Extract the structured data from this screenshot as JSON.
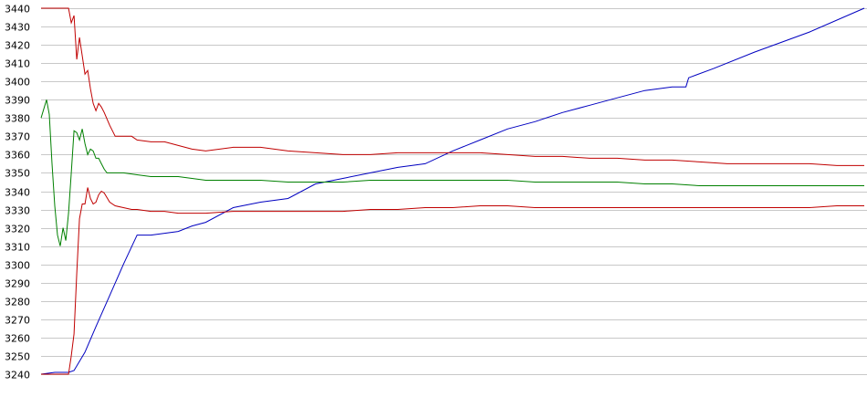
{
  "chart_data": {
    "type": "line",
    "title": "",
    "xlabel": "",
    "ylabel": "",
    "ylim": [
      3240,
      3440
    ],
    "yticks": [
      3440,
      3430,
      3420,
      3410,
      3400,
      3390,
      3380,
      3370,
      3360,
      3350,
      3340,
      3330,
      3320,
      3310,
      3300,
      3290,
      3280,
      3270,
      3260,
      3250,
      3240
    ],
    "xlim": [
      0,
      300
    ],
    "grid": true,
    "legend": "none",
    "series": [
      {
        "color": "#0000c0",
        "x": [
          0,
          5,
          10,
          12,
          16,
          20,
          25,
          30,
          35,
          40,
          45,
          50,
          55,
          60,
          70,
          80,
          90,
          100,
          110,
          120,
          130,
          140,
          150,
          160,
          170,
          180,
          190,
          200,
          210,
          220,
          230,
          235,
          236,
          245,
          260,
          280,
          300
        ],
        "y": [
          3240,
          3241,
          3241,
          3242,
          3252,
          3266,
          3283,
          3300,
          3316,
          3316,
          3317,
          3318,
          3321,
          3323,
          3331,
          3334,
          3336,
          3344,
          3347,
          3350,
          3353,
          3355,
          3362,
          3368,
          3374,
          3378,
          3383,
          3387,
          3391,
          3395,
          3397,
          3397,
          3402,
          3407,
          3416,
          3427,
          3440
        ]
      },
      {
        "color": "#c00000",
        "x": [
          0,
          5,
          8,
          10,
          11,
          12,
          13,
          14,
          15,
          16,
          17,
          18,
          19,
          20,
          21,
          22,
          23,
          25,
          27,
          30,
          33,
          35,
          40,
          45,
          50,
          55,
          60,
          70,
          80,
          90,
          100,
          110,
          120,
          130,
          140,
          150,
          160,
          170,
          180,
          190,
          200,
          210,
          220,
          230,
          240,
          250,
          260,
          270,
          280,
          290,
          300
        ],
        "y": [
          3440,
          3440,
          3440,
          3440,
          3432,
          3436,
          3412,
          3424,
          3414,
          3404,
          3406,
          3396,
          3388,
          3384,
          3388,
          3386,
          3383,
          3376,
          3370,
          3370,
          3370,
          3368,
          3367,
          3367,
          3365,
          3363,
          3362,
          3364,
          3364,
          3362,
          3361,
          3360,
          3360,
          3361,
          3361,
          3361,
          3361,
          3360,
          3359,
          3359,
          3358,
          3358,
          3357,
          3357,
          3356,
          3355,
          3355,
          3355,
          3355,
          3354,
          3354
        ]
      },
      {
        "color": "#008000",
        "x": [
          0,
          2,
          3,
          4,
          5,
          6,
          7,
          8,
          9,
          10,
          11,
          12,
          13,
          14,
          15,
          16,
          17,
          18,
          19,
          20,
          21,
          22,
          23,
          24,
          25,
          27,
          30,
          35,
          40,
          45,
          50,
          55,
          60,
          70,
          80,
          90,
          100,
          110,
          120,
          130,
          140,
          150,
          160,
          170,
          180,
          190,
          200,
          210,
          220,
          230,
          240,
          250,
          260,
          270,
          280,
          290,
          300
        ],
        "y": [
          3380,
          3390,
          3382,
          3355,
          3332,
          3316,
          3310,
          3320,
          3313,
          3328,
          3350,
          3373,
          3372,
          3368,
          3374,
          3366,
          3360,
          3363,
          3362,
          3358,
          3358,
          3355,
          3352,
          3350,
          3350,
          3350,
          3350,
          3349,
          3348,
          3348,
          3348,
          3347,
          3346,
          3346,
          3346,
          3345,
          3345,
          3345,
          3346,
          3346,
          3346,
          3346,
          3346,
          3346,
          3345,
          3345,
          3345,
          3345,
          3344,
          3344,
          3343,
          3343,
          3343,
          3343,
          3343,
          3343,
          3343
        ]
      },
      {
        "color": "#c00000",
        "x": [
          0,
          5,
          8,
          10,
          11,
          12,
          13,
          14,
          15,
          16,
          17,
          18,
          19,
          20,
          21,
          22,
          23,
          25,
          27,
          30,
          33,
          35,
          40,
          45,
          50,
          55,
          60,
          70,
          80,
          90,
          100,
          110,
          120,
          130,
          140,
          150,
          160,
          170,
          180,
          190,
          200,
          210,
          220,
          230,
          240,
          250,
          260,
          270,
          280,
          290,
          300
        ],
        "y": [
          3240,
          3240,
          3240,
          3240,
          3250,
          3262,
          3295,
          3325,
          3333,
          3333,
          3342,
          3336,
          3333,
          3334,
          3338,
          3340,
          3339,
          3334,
          3332,
          3331,
          3330,
          3330,
          3329,
          3329,
          3328,
          3328,
          3328,
          3329,
          3329,
          3329,
          3329,
          3329,
          3330,
          3330,
          3331,
          3331,
          3332,
          3332,
          3331,
          3331,
          3331,
          3331,
          3331,
          3331,
          3331,
          3331,
          3331,
          3331,
          3331,
          3332,
          3332
        ]
      }
    ]
  }
}
